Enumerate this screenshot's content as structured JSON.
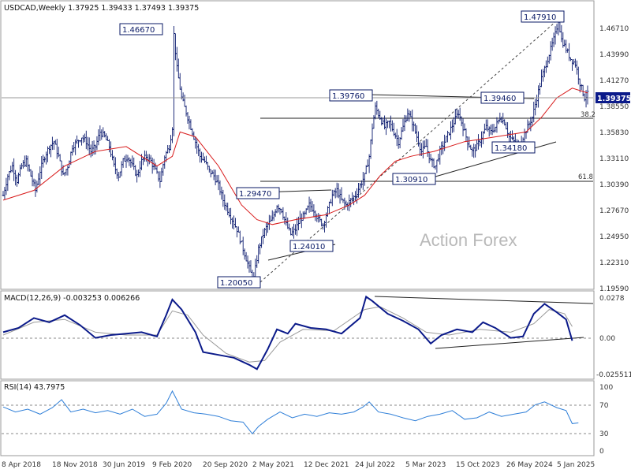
{
  "chart_data": [
    {
      "type": "candlestick",
      "header": "USDCAD,Weekly  1.37925 1.39433 1.37493 1.39375",
      "current_price": "1.39375",
      "watermark": "Action Forex",
      "y_ticks": [
        "1.46710",
        "1.43990",
        "1.41270",
        "1.38550",
        "1.35830",
        "1.33110",
        "1.30390",
        "1.27670",
        "1.24950",
        "1.22310",
        "1.19590"
      ],
      "ylim": [
        1.1935,
        1.488
      ],
      "x_ticks": [
        "8 Apr 2018",
        "18 Nov 2018",
        "30 Jun 2019",
        "9 Feb 2020",
        "20 Sep 2020",
        "2 May 2021",
        "12 Dec 2021",
        "24 Jul 2022",
        "5 Mar 2023",
        "15 Oct 2023",
        "26 May 2024",
        "5 Jan 2025"
      ],
      "annotations": [
        "1.46670",
        "1.47910",
        "1.39760",
        "1.39460",
        "1.34180",
        "1.30910",
        "1.29470",
        "1.24010",
        "1.20050",
        "38.2",
        "61.8"
      ],
      "price_path": [
        [
          0,
          1.29
        ],
        [
          3,
          1.31
        ],
        [
          6,
          1.32
        ],
        [
          9,
          1.305
        ],
        [
          12,
          1.32
        ],
        [
          15,
          1.325
        ],
        [
          18,
          1.31
        ],
        [
          21,
          1.295
        ],
        [
          24,
          1.315
        ],
        [
          27,
          1.33
        ],
        [
          30,
          1.34
        ],
        [
          33,
          1.345
        ],
        [
          36,
          1.33
        ],
        [
          39,
          1.31
        ],
        [
          42,
          1.32
        ],
        [
          45,
          1.34
        ],
        [
          48,
          1.345
        ],
        [
          51,
          1.35
        ],
        [
          54,
          1.345
        ],
        [
          57,
          1.335
        ],
        [
          60,
          1.34
        ],
        [
          63,
          1.355
        ],
        [
          66,
          1.35
        ],
        [
          69,
          1.34
        ],
        [
          72,
          1.32
        ],
        [
          75,
          1.31
        ],
        [
          78,
          1.325
        ],
        [
          81,
          1.33
        ],
        [
          84,
          1.32
        ],
        [
          87,
          1.31
        ],
        [
          90,
          1.325
        ],
        [
          93,
          1.33
        ],
        [
          96,
          1.325
        ],
        [
          99,
          1.315
        ],
        [
          102,
          1.305
        ],
        [
          105,
          1.33
        ],
        [
          108,
          1.34
        ],
        [
          110,
          1.36
        ],
        [
          111,
          1.455
        ],
        [
          113,
          1.42
        ],
        [
          116,
          1.39
        ],
        [
          119,
          1.375
        ],
        [
          122,
          1.36
        ],
        [
          125,
          1.345
        ],
        [
          128,
          1.33
        ],
        [
          131,
          1.325
        ],
        [
          134,
          1.315
        ],
        [
          137,
          1.31
        ],
        [
          140,
          1.3
        ],
        [
          143,
          1.285
        ],
        [
          146,
          1.275
        ],
        [
          149,
          1.265
        ],
        [
          152,
          1.255
        ],
        [
          155,
          1.24
        ],
        [
          158,
          1.225
        ],
        [
          161,
          1.21
        ],
        [
          163,
          1.205
        ],
        [
          166,
          1.235
        ],
        [
          169,
          1.25
        ],
        [
          172,
          1.26
        ],
        [
          175,
          1.265
        ],
        [
          178,
          1.28
        ],
        [
          181,
          1.275
        ],
        [
          184,
          1.26
        ],
        [
          187,
          1.25
        ],
        [
          190,
          1.255
        ],
        [
          193,
          1.265
        ],
        [
          196,
          1.27
        ],
        [
          199,
          1.28
        ],
        [
          202,
          1.275
        ],
        [
          205,
          1.265
        ],
        [
          208,
          1.26
        ],
        [
          211,
          1.275
        ],
        [
          214,
          1.29
        ],
        [
          217,
          1.295
        ],
        [
          220,
          1.285
        ],
        [
          223,
          1.28
        ],
        [
          226,
          1.285
        ],
        [
          229,
          1.29
        ],
        [
          232,
          1.3
        ],
        [
          235,
          1.31
        ],
        [
          238,
          1.33
        ],
        [
          240,
          1.36
        ],
        [
          242,
          1.38
        ],
        [
          245,
          1.37
        ],
        [
          248,
          1.36
        ],
        [
          251,
          1.365
        ],
        [
          254,
          1.355
        ],
        [
          257,
          1.345
        ],
        [
          260,
          1.36
        ],
        [
          263,
          1.375
        ],
        [
          266,
          1.365
        ],
        [
          269,
          1.35
        ],
        [
          272,
          1.335
        ],
        [
          275,
          1.34
        ],
        [
          278,
          1.325
        ],
        [
          281,
          1.32
        ],
        [
          284,
          1.335
        ],
        [
          287,
          1.345
        ],
        [
          290,
          1.355
        ],
        [
          293,
          1.365
        ],
        [
          296,
          1.375
        ],
        [
          299,
          1.36
        ],
        [
          302,
          1.345
        ],
        [
          305,
          1.335
        ],
        [
          308,
          1.34
        ],
        [
          311,
          1.35
        ],
        [
          314,
          1.36
        ],
        [
          317,
          1.355
        ],
        [
          320,
          1.36
        ],
        [
          323,
          1.37
        ],
        [
          326,
          1.365
        ],
        [
          329,
          1.35
        ],
        [
          332,
          1.345
        ],
        [
          335,
          1.34
        ],
        [
          338,
          1.35
        ],
        [
          341,
          1.36
        ],
        [
          344,
          1.37
        ],
        [
          347,
          1.39
        ],
        [
          350,
          1.41
        ],
        [
          353,
          1.425
        ],
        [
          356,
          1.44
        ],
        [
          359,
          1.455
        ],
        [
          361,
          1.47
        ],
        [
          363,
          1.45
        ],
        [
          366,
          1.44
        ],
        [
          369,
          1.43
        ],
        [
          372,
          1.425
        ],
        [
          375,
          1.405
        ],
        [
          378,
          1.39
        ],
        [
          380,
          1.39375
        ]
      ],
      "ma_path": [
        [
          0,
          1.285
        ],
        [
          20,
          1.295
        ],
        [
          40,
          1.32
        ],
        [
          60,
          1.335
        ],
        [
          80,
          1.34
        ],
        [
          100,
          1.32
        ],
        [
          110,
          1.33
        ],
        [
          115,
          1.355
        ],
        [
          125,
          1.35
        ],
        [
          140,
          1.32
        ],
        [
          155,
          1.28
        ],
        [
          165,
          1.265
        ],
        [
          175,
          1.26
        ],
        [
          190,
          1.265
        ],
        [
          210,
          1.27
        ],
        [
          225,
          1.28
        ],
        [
          235,
          1.29
        ],
        [
          245,
          1.31
        ],
        [
          255,
          1.325
        ],
        [
          265,
          1.33
        ],
        [
          280,
          1.335
        ],
        [
          300,
          1.345
        ],
        [
          320,
          1.35
        ],
        [
          340,
          1.355
        ],
        [
          350,
          1.37
        ],
        [
          360,
          1.39
        ],
        [
          370,
          1.4
        ],
        [
          380,
          1.395
        ]
      ]
    },
    {
      "type": "line",
      "header": "MACD(12,26,9) -0.003253 0.006266",
      "y_ticks": [
        "0.0278",
        "0.00",
        "-0.025511"
      ],
      "ylim": [
        -0.03,
        0.03
      ],
      "macd_path": [
        [
          0,
          0.002
        ],
        [
          10,
          0.005
        ],
        [
          20,
          0.012
        ],
        [
          30,
          0.009
        ],
        [
          40,
          0.014
        ],
        [
          50,
          0.007
        ],
        [
          60,
          -0.002
        ],
        [
          70,
          0.0
        ],
        [
          80,
          0.001
        ],
        [
          90,
          0.002
        ],
        [
          100,
          -0.001
        ],
        [
          106,
          0.014
        ],
        [
          110,
          0.025
        ],
        [
          116,
          0.018
        ],
        [
          125,
          0.002
        ],
        [
          130,
          -0.012
        ],
        [
          140,
          -0.014
        ],
        [
          150,
          -0.016
        ],
        [
          160,
          -0.021
        ],
        [
          165,
          -0.024
        ],
        [
          172,
          -0.01
        ],
        [
          178,
          0.004
        ],
        [
          185,
          0.001
        ],
        [
          190,
          0.008
        ],
        [
          200,
          0.005
        ],
        [
          210,
          0.004
        ],
        [
          220,
          0.001
        ],
        [
          232,
          0.012
        ],
        [
          236,
          0.027
        ],
        [
          240,
          0.024
        ],
        [
          250,
          0.015
        ],
        [
          260,
          0.01
        ],
        [
          270,
          0.004
        ],
        [
          278,
          -0.006
        ],
        [
          285,
          0.0
        ],
        [
          295,
          0.004
        ],
        [
          305,
          0.002
        ],
        [
          312,
          0.009
        ],
        [
          320,
          0.005
        ],
        [
          330,
          -0.002
        ],
        [
          338,
          -0.001
        ],
        [
          345,
          0.015
        ],
        [
          352,
          0.022
        ],
        [
          360,
          0.016
        ],
        [
          366,
          0.011
        ],
        [
          370,
          -0.004
        ]
      ],
      "signal_path": [
        [
          0,
          0.0
        ],
        [
          20,
          0.009
        ],
        [
          40,
          0.011
        ],
        [
          60,
          0.002
        ],
        [
          80,
          0.0
        ],
        [
          100,
          0.0
        ],
        [
          110,
          0.017
        ],
        [
          120,
          0.014
        ],
        [
          130,
          0.0
        ],
        [
          145,
          -0.013
        ],
        [
          160,
          -0.019
        ],
        [
          170,
          -0.018
        ],
        [
          180,
          -0.005
        ],
        [
          195,
          0.004
        ],
        [
          215,
          0.003
        ],
        [
          235,
          0.018
        ],
        [
          245,
          0.02
        ],
        [
          260,
          0.012
        ],
        [
          275,
          0.002
        ],
        [
          290,
          0.0
        ],
        [
          310,
          0.004
        ],
        [
          330,
          0.002
        ],
        [
          345,
          0.008
        ],
        [
          355,
          0.018
        ],
        [
          365,
          0.015
        ],
        [
          370,
          0.006
        ]
      ]
    },
    {
      "type": "line",
      "header": "RSI(14) 43.7975",
      "y_ticks": [
        "100",
        "70",
        "30",
        "0"
      ],
      "ylim": [
        0,
        100
      ],
      "rsi_path": [
        [
          0,
          65
        ],
        [
          8,
          58
        ],
        [
          16,
          62
        ],
        [
          24,
          55
        ],
        [
          32,
          64
        ],
        [
          38,
          75
        ],
        [
          44,
          58
        ],
        [
          52,
          62
        ],
        [
          60,
          57
        ],
        [
          68,
          60
        ],
        [
          76,
          55
        ],
        [
          84,
          62
        ],
        [
          92,
          52
        ],
        [
          100,
          55
        ],
        [
          106,
          70
        ],
        [
          110,
          87
        ],
        [
          116,
          62
        ],
        [
          124,
          57
        ],
        [
          132,
          55
        ],
        [
          140,
          52
        ],
        [
          148,
          46
        ],
        [
          156,
          44
        ],
        [
          162,
          28
        ],
        [
          166,
          38
        ],
        [
          172,
          48
        ],
        [
          180,
          58
        ],
        [
          188,
          50
        ],
        [
          196,
          55
        ],
        [
          204,
          52
        ],
        [
          212,
          57
        ],
        [
          220,
          55
        ],
        [
          228,
          58
        ],
        [
          234,
          65
        ],
        [
          238,
          72
        ],
        [
          244,
          58
        ],
        [
          252,
          55
        ],
        [
          260,
          50
        ],
        [
          268,
          46
        ],
        [
          276,
          52
        ],
        [
          284,
          55
        ],
        [
          292,
          60
        ],
        [
          300,
          48
        ],
        [
          308,
          50
        ],
        [
          316,
          58
        ],
        [
          324,
          52
        ],
        [
          332,
          55
        ],
        [
          340,
          58
        ],
        [
          346,
          68
        ],
        [
          352,
          72
        ],
        [
          360,
          64
        ],
        [
          366,
          60
        ],
        [
          370,
          42
        ],
        [
          374,
          43
        ]
      ]
    }
  ]
}
